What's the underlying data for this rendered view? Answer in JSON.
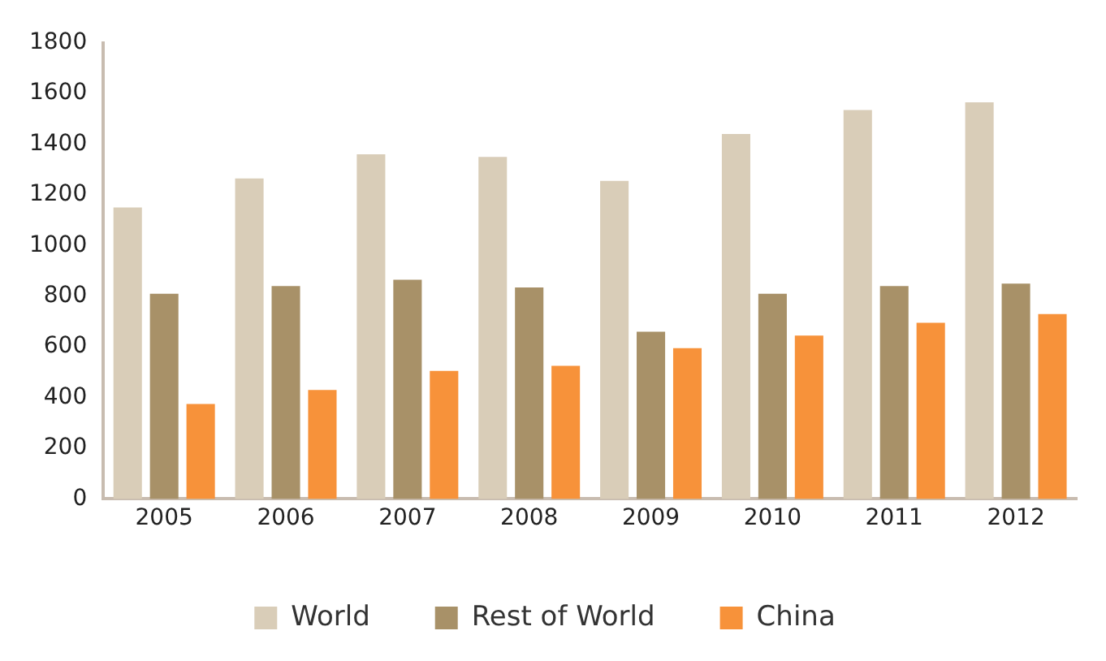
{
  "chart_data": {
    "type": "bar",
    "categories": [
      "2005",
      "2006",
      "2007",
      "2008",
      "2009",
      "2010",
      "2011",
      "2012"
    ],
    "series": [
      {
        "name": "World",
        "color": "#d9cdb8",
        "values": [
          1150,
          1265,
          1360,
          1350,
          1255,
          1440,
          1535,
          1565
        ]
      },
      {
        "name": "Rest of World",
        "color": "#a89168",
        "values": [
          810,
          840,
          865,
          835,
          660,
          810,
          840,
          850
        ]
      },
      {
        "name": "China",
        "color": "#f7923a",
        "values": [
          375,
          430,
          505,
          525,
          595,
          645,
          695,
          730
        ]
      }
    ],
    "ylim": [
      0,
      1800
    ],
    "yticks": [
      0,
      200,
      400,
      600,
      800,
      1000,
      1200,
      1400,
      1600,
      1800
    ],
    "grid": false,
    "legend": "bottom"
  }
}
